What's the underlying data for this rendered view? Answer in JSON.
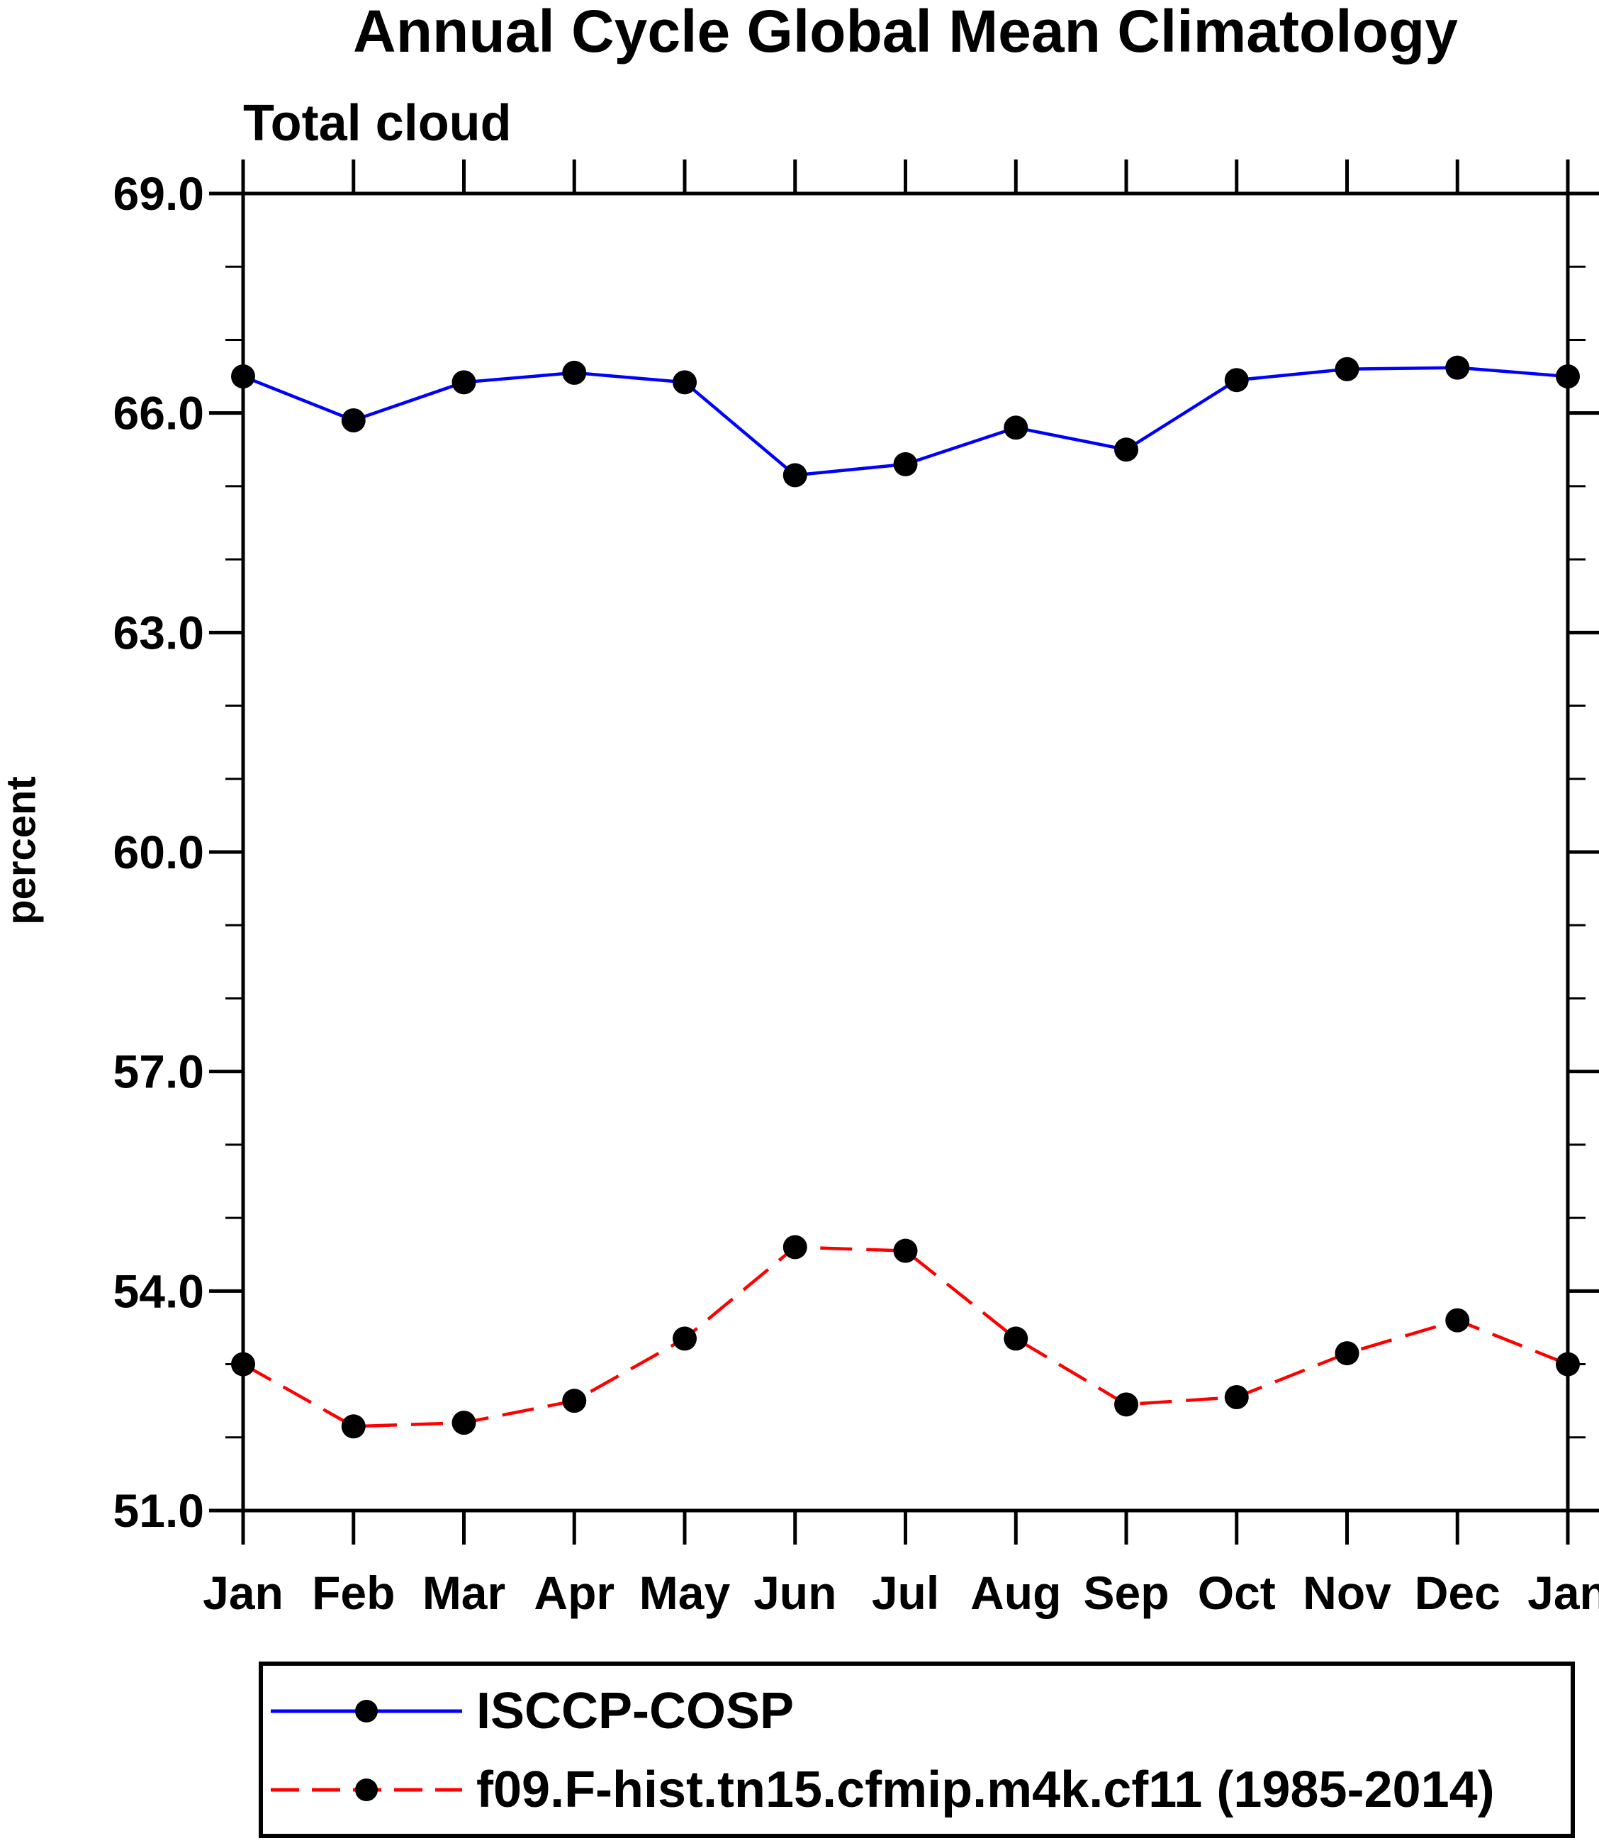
{
  "chart_data": {
    "type": "line",
    "title": "Annual Cycle Global Mean Climatology",
    "subtitle": "Total cloud",
    "ylabel": "percent",
    "xlabel": "",
    "categories": [
      "Jan",
      "Feb",
      "Mar",
      "Apr",
      "May",
      "Jun",
      "Jul",
      "Aug",
      "Sep",
      "Oct",
      "Nov",
      "Dec",
      "Jan"
    ],
    "ylim": [
      51.0,
      69.0
    ],
    "y_major_ticks": [
      51.0,
      54.0,
      57.0,
      60.0,
      63.0,
      66.0,
      69.0
    ],
    "y_major_tick_labels": [
      "51.0",
      "54.0",
      "57.0",
      "60.0",
      "63.0",
      "66.0",
      "69.0"
    ],
    "y_minor_tick_step": 1.0,
    "grid": "off",
    "legend_position": "bottom",
    "marker": {
      "shape": "circle",
      "color": "#000000"
    },
    "frame_color": "#000000",
    "series": [
      {
        "name": "ISCCP-COSP",
        "color": "#0000FF",
        "line_style": "solid",
        "values": [
          66.5,
          65.9,
          66.42,
          66.55,
          66.42,
          65.15,
          65.3,
          65.8,
          65.5,
          66.45,
          66.6,
          66.62,
          66.5
        ]
      },
      {
        "name": "f09.F-hist.tn15.cfmip.m4k.cf11 (1985-2014)",
        "color": "#FF0000",
        "line_style": "dashed",
        "values": [
          53.0,
          52.15,
          52.2,
          52.5,
          53.35,
          54.6,
          54.55,
          53.35,
          52.45,
          52.55,
          53.15,
          53.6,
          53.0
        ]
      }
    ]
  }
}
